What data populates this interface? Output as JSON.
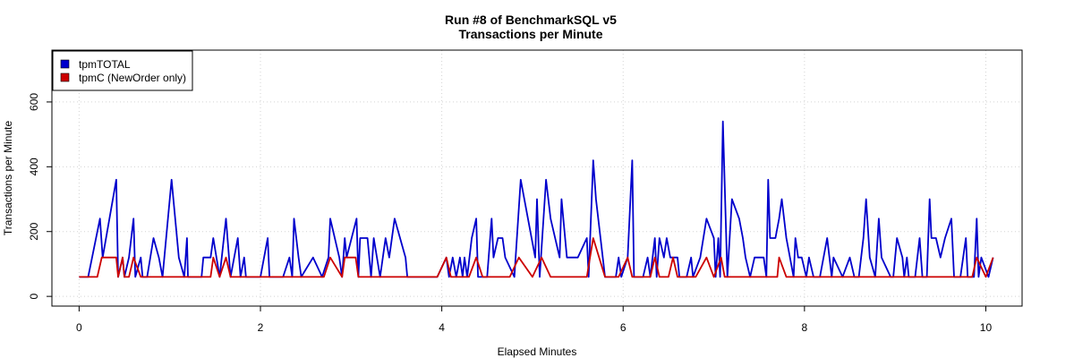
{
  "chart_data": {
    "type": "line",
    "title": "Run #8 of BenchmarkSQL v5",
    "subtitle": "Transactions per Minute",
    "xlabel": "Elapsed Minutes",
    "ylabel": "Transactions per Minute",
    "xlim": [
      -0.3,
      10.4
    ],
    "ylim": [
      -30,
      760
    ],
    "xticks": [
      0,
      2,
      4,
      6,
      8,
      10
    ],
    "yticks": [
      0,
      200,
      400,
      600
    ],
    "grid": true,
    "legend_position": "top-left",
    "series": [
      {
        "name": "tpmTOTAL",
        "color": "#0000cc",
        "points": [
          [
            0,
            60
          ],
          [
            0.1,
            60
          ],
          [
            0.23,
            240
          ],
          [
            0.26,
            120
          ],
          [
            0.41,
            360
          ],
          [
            0.43,
            60
          ],
          [
            0.48,
            120
          ],
          [
            0.5,
            60
          ],
          [
            0.55,
            120
          ],
          [
            0.6,
            240
          ],
          [
            0.62,
            60
          ],
          [
            0.68,
            120
          ],
          [
            0.7,
            60
          ],
          [
            0.75,
            60
          ],
          [
            0.82,
            180
          ],
          [
            0.88,
            120
          ],
          [
            0.92,
            60
          ],
          [
            1.02,
            360
          ],
          [
            1.1,
            120
          ],
          [
            1.16,
            60
          ],
          [
            1.19,
            180
          ],
          [
            1.2,
            60
          ],
          [
            1.35,
            60
          ],
          [
            1.37,
            120
          ],
          [
            1.45,
            120
          ],
          [
            1.48,
            180
          ],
          [
            1.55,
            60
          ],
          [
            1.62,
            240
          ],
          [
            1.67,
            60
          ],
          [
            1.75,
            180
          ],
          [
            1.78,
            60
          ],
          [
            1.82,
            120
          ],
          [
            1.84,
            60
          ],
          [
            2.0,
            60
          ],
          [
            2.08,
            180
          ],
          [
            2.1,
            60
          ],
          [
            2.25,
            60
          ],
          [
            2.32,
            120
          ],
          [
            2.35,
            60
          ],
          [
            2.37,
            240
          ],
          [
            2.42,
            120
          ],
          [
            2.45,
            60
          ],
          [
            2.58,
            120
          ],
          [
            2.68,
            60
          ],
          [
            2.75,
            120
          ],
          [
            2.77,
            240
          ],
          [
            2.87,
            120
          ],
          [
            2.9,
            60
          ],
          [
            2.93,
            180
          ],
          [
            2.95,
            120
          ],
          [
            3.06,
            240
          ],
          [
            3.08,
            60
          ],
          [
            3.1,
            180
          ],
          [
            3.18,
            180
          ],
          [
            3.22,
            60
          ],
          [
            3.25,
            180
          ],
          [
            3.32,
            60
          ],
          [
            3.38,
            180
          ],
          [
            3.42,
            120
          ],
          [
            3.48,
            240
          ],
          [
            3.6,
            120
          ],
          [
            3.62,
            60
          ],
          [
            3.95,
            60
          ],
          [
            4.05,
            120
          ],
          [
            4.08,
            60
          ],
          [
            4.12,
            120
          ],
          [
            4.16,
            60
          ],
          [
            4.2,
            120
          ],
          [
            4.23,
            60
          ],
          [
            4.25,
            120
          ],
          [
            4.28,
            60
          ],
          [
            4.33,
            180
          ],
          [
            4.38,
            240
          ],
          [
            4.4,
            60
          ],
          [
            4.5,
            60
          ],
          [
            4.55,
            240
          ],
          [
            4.57,
            120
          ],
          [
            4.62,
            180
          ],
          [
            4.67,
            180
          ],
          [
            4.7,
            120
          ],
          [
            4.8,
            60
          ],
          [
            4.87,
            360
          ],
          [
            4.95,
            240
          ],
          [
            5.03,
            120
          ],
          [
            5.05,
            300
          ],
          [
            5.08,
            60
          ],
          [
            5.15,
            360
          ],
          [
            5.2,
            240
          ],
          [
            5.3,
            120
          ],
          [
            5.32,
            300
          ],
          [
            5.38,
            120
          ],
          [
            5.5,
            120
          ],
          [
            5.6,
            180
          ],
          [
            5.62,
            60
          ],
          [
            5.67,
            420
          ],
          [
            5.7,
            300
          ],
          [
            5.8,
            60
          ],
          [
            5.92,
            60
          ],
          [
            5.95,
            120
          ],
          [
            5.98,
            60
          ],
          [
            6.05,
            120
          ],
          [
            6.1,
            420
          ],
          [
            6.12,
            60
          ],
          [
            6.22,
            60
          ],
          [
            6.27,
            120
          ],
          [
            6.3,
            60
          ],
          [
            6.35,
            180
          ],
          [
            6.37,
            60
          ],
          [
            6.4,
            180
          ],
          [
            6.45,
            120
          ],
          [
            6.48,
            180
          ],
          [
            6.52,
            120
          ],
          [
            6.6,
            120
          ],
          [
            6.62,
            60
          ],
          [
            6.7,
            60
          ],
          [
            6.75,
            120
          ],
          [
            6.77,
            60
          ],
          [
            6.85,
            120
          ],
          [
            6.92,
            240
          ],
          [
            7.0,
            180
          ],
          [
            7.02,
            60
          ],
          [
            7.05,
            180
          ],
          [
            7.07,
            60
          ],
          [
            7.1,
            540
          ],
          [
            7.15,
            60
          ],
          [
            7.2,
            300
          ],
          [
            7.28,
            240
          ],
          [
            7.32,
            180
          ],
          [
            7.35,
            120
          ],
          [
            7.4,
            60
          ],
          [
            7.45,
            120
          ],
          [
            7.55,
            120
          ],
          [
            7.58,
            60
          ],
          [
            7.6,
            360
          ],
          [
            7.62,
            180
          ],
          [
            7.68,
            180
          ],
          [
            7.72,
            240
          ],
          [
            7.75,
            300
          ],
          [
            7.8,
            180
          ],
          [
            7.88,
            60
          ],
          [
            7.9,
            180
          ],
          [
            7.93,
            120
          ],
          [
            7.97,
            120
          ],
          [
            8.02,
            60
          ],
          [
            8.05,
            120
          ],
          [
            8.1,
            60
          ],
          [
            8.17,
            60
          ],
          [
            8.25,
            180
          ],
          [
            8.3,
            60
          ],
          [
            8.32,
            120
          ],
          [
            8.42,
            60
          ],
          [
            8.5,
            120
          ],
          [
            8.55,
            60
          ],
          [
            8.6,
            60
          ],
          [
            8.65,
            180
          ],
          [
            8.68,
            300
          ],
          [
            8.72,
            120
          ],
          [
            8.78,
            60
          ],
          [
            8.82,
            240
          ],
          [
            8.85,
            120
          ],
          [
            8.95,
            60
          ],
          [
            8.98,
            60
          ],
          [
            9.02,
            180
          ],
          [
            9.08,
            120
          ],
          [
            9.1,
            60
          ],
          [
            9.13,
            120
          ],
          [
            9.15,
            60
          ],
          [
            9.22,
            60
          ],
          [
            9.27,
            180
          ],
          [
            9.3,
            60
          ],
          [
            9.35,
            60
          ],
          [
            9.38,
            300
          ],
          [
            9.4,
            180
          ],
          [
            9.45,
            180
          ],
          [
            9.5,
            120
          ],
          [
            9.55,
            180
          ],
          [
            9.62,
            240
          ],
          [
            9.65,
            60
          ],
          [
            9.72,
            60
          ],
          [
            9.78,
            180
          ],
          [
            9.8,
            60
          ],
          [
            9.87,
            60
          ],
          [
            9.9,
            240
          ],
          [
            9.92,
            60
          ],
          [
            9.95,
            120
          ],
          [
            10.03,
            60
          ],
          [
            10.08,
            120
          ]
        ]
      },
      {
        "name": "tpmC (NewOrder only)",
        "color": "#cc0000",
        "points": [
          [
            0,
            60
          ],
          [
            0.2,
            60
          ],
          [
            0.25,
            120
          ],
          [
            0.41,
            120
          ],
          [
            0.43,
            60
          ],
          [
            0.48,
            120
          ],
          [
            0.5,
            60
          ],
          [
            0.55,
            60
          ],
          [
            0.6,
            120
          ],
          [
            0.68,
            60
          ],
          [
            1.0,
            60
          ],
          [
            1.05,
            60
          ],
          [
            1.25,
            60
          ],
          [
            1.45,
            60
          ],
          [
            1.48,
            120
          ],
          [
            1.55,
            60
          ],
          [
            1.62,
            120
          ],
          [
            1.67,
            60
          ],
          [
            2.0,
            60
          ],
          [
            2.5,
            60
          ],
          [
            2.7,
            60
          ],
          [
            2.77,
            120
          ],
          [
            2.9,
            60
          ],
          [
            2.93,
            120
          ],
          [
            3.05,
            120
          ],
          [
            3.08,
            60
          ],
          [
            3.5,
            60
          ],
          [
            3.95,
            60
          ],
          [
            4.05,
            120
          ],
          [
            4.1,
            60
          ],
          [
            4.3,
            60
          ],
          [
            4.38,
            120
          ],
          [
            4.45,
            60
          ],
          [
            4.55,
            60
          ],
          [
            4.67,
            60
          ],
          [
            4.75,
            60
          ],
          [
            4.85,
            120
          ],
          [
            5.0,
            60
          ],
          [
            5.1,
            120
          ],
          [
            5.2,
            60
          ],
          [
            5.5,
            60
          ],
          [
            5.6,
            60
          ],
          [
            5.67,
            180
          ],
          [
            5.8,
            60
          ],
          [
            5.95,
            60
          ],
          [
            6.05,
            120
          ],
          [
            6.1,
            60
          ],
          [
            6.3,
            60
          ],
          [
            6.35,
            120
          ],
          [
            6.4,
            60
          ],
          [
            6.5,
            60
          ],
          [
            6.55,
            120
          ],
          [
            6.6,
            60
          ],
          [
            6.8,
            60
          ],
          [
            6.92,
            120
          ],
          [
            7.0,
            60
          ],
          [
            7.08,
            120
          ],
          [
            7.12,
            60
          ],
          [
            7.5,
            60
          ],
          [
            7.7,
            60
          ],
          [
            7.72,
            120
          ],
          [
            7.8,
            60
          ],
          [
            8.0,
            60
          ],
          [
            8.3,
            60
          ],
          [
            8.5,
            60
          ],
          [
            8.8,
            60
          ],
          [
            9.0,
            60
          ],
          [
            9.5,
            60
          ],
          [
            9.85,
            60
          ],
          [
            9.9,
            120
          ],
          [
            10.0,
            60
          ],
          [
            10.08,
            120
          ]
        ]
      }
    ]
  }
}
